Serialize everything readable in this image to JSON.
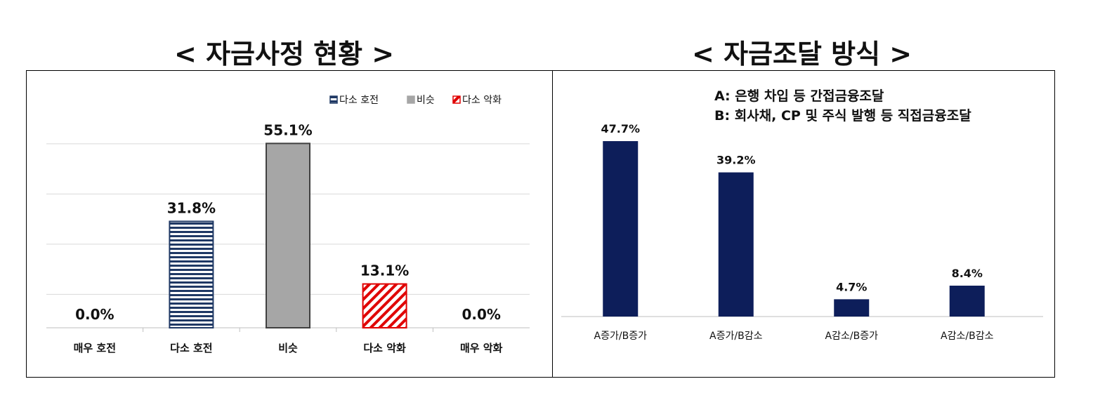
{
  "left_title": "< 자금사정 현황 >",
  "right_title": "< 자금조달 방식 >",
  "chart_data": [
    {
      "type": "bar",
      "title": "< 자금사정 현황 >",
      "categories": [
        "매우 호전",
        "다소 호전",
        "비슷",
        "다소 악화",
        "매우 악화"
      ],
      "values": [
        0.0,
        31.8,
        55.1,
        13.1,
        0.0
      ],
      "value_labels": [
        "0.0%",
        "31.8%",
        "55.1%",
        "13.1%",
        "0.0%"
      ],
      "ylim": [
        0,
        60
      ],
      "grid": true,
      "legend": {
        "placement": "top-right",
        "entries": [
          {
            "label": "다소 호전",
            "color": "#1f3864",
            "pattern": "horizontal-stripes"
          },
          {
            "label": "비슷",
            "color": "#a6a6a6",
            "pattern": "solid"
          },
          {
            "label": "다소 악화",
            "color": "#e00000",
            "pattern": "diagonal-stripes"
          }
        ]
      },
      "bar_styles": [
        "none",
        "horizontal-stripes",
        "solid",
        "diagonal-stripes",
        "none"
      ]
    },
    {
      "type": "bar",
      "title": "< 자금조달 방식 >",
      "categories": [
        "A증가/B증가",
        "A증가/B감소",
        "A감소/B증가",
        "A감소/B감소"
      ],
      "values": [
        47.7,
        39.2,
        4.7,
        8.4
      ],
      "value_labels": [
        "47.7%",
        "39.2%",
        "4.7%",
        "8.4%"
      ],
      "ylim": [
        0,
        50
      ],
      "grid": false,
      "color": "#0d1e5a",
      "annotations": [
        "A: 은행 차입 등 간접금융조달",
        "B: 회사채, CP 및 주식 발행 등 직접금융조달"
      ]
    }
  ]
}
